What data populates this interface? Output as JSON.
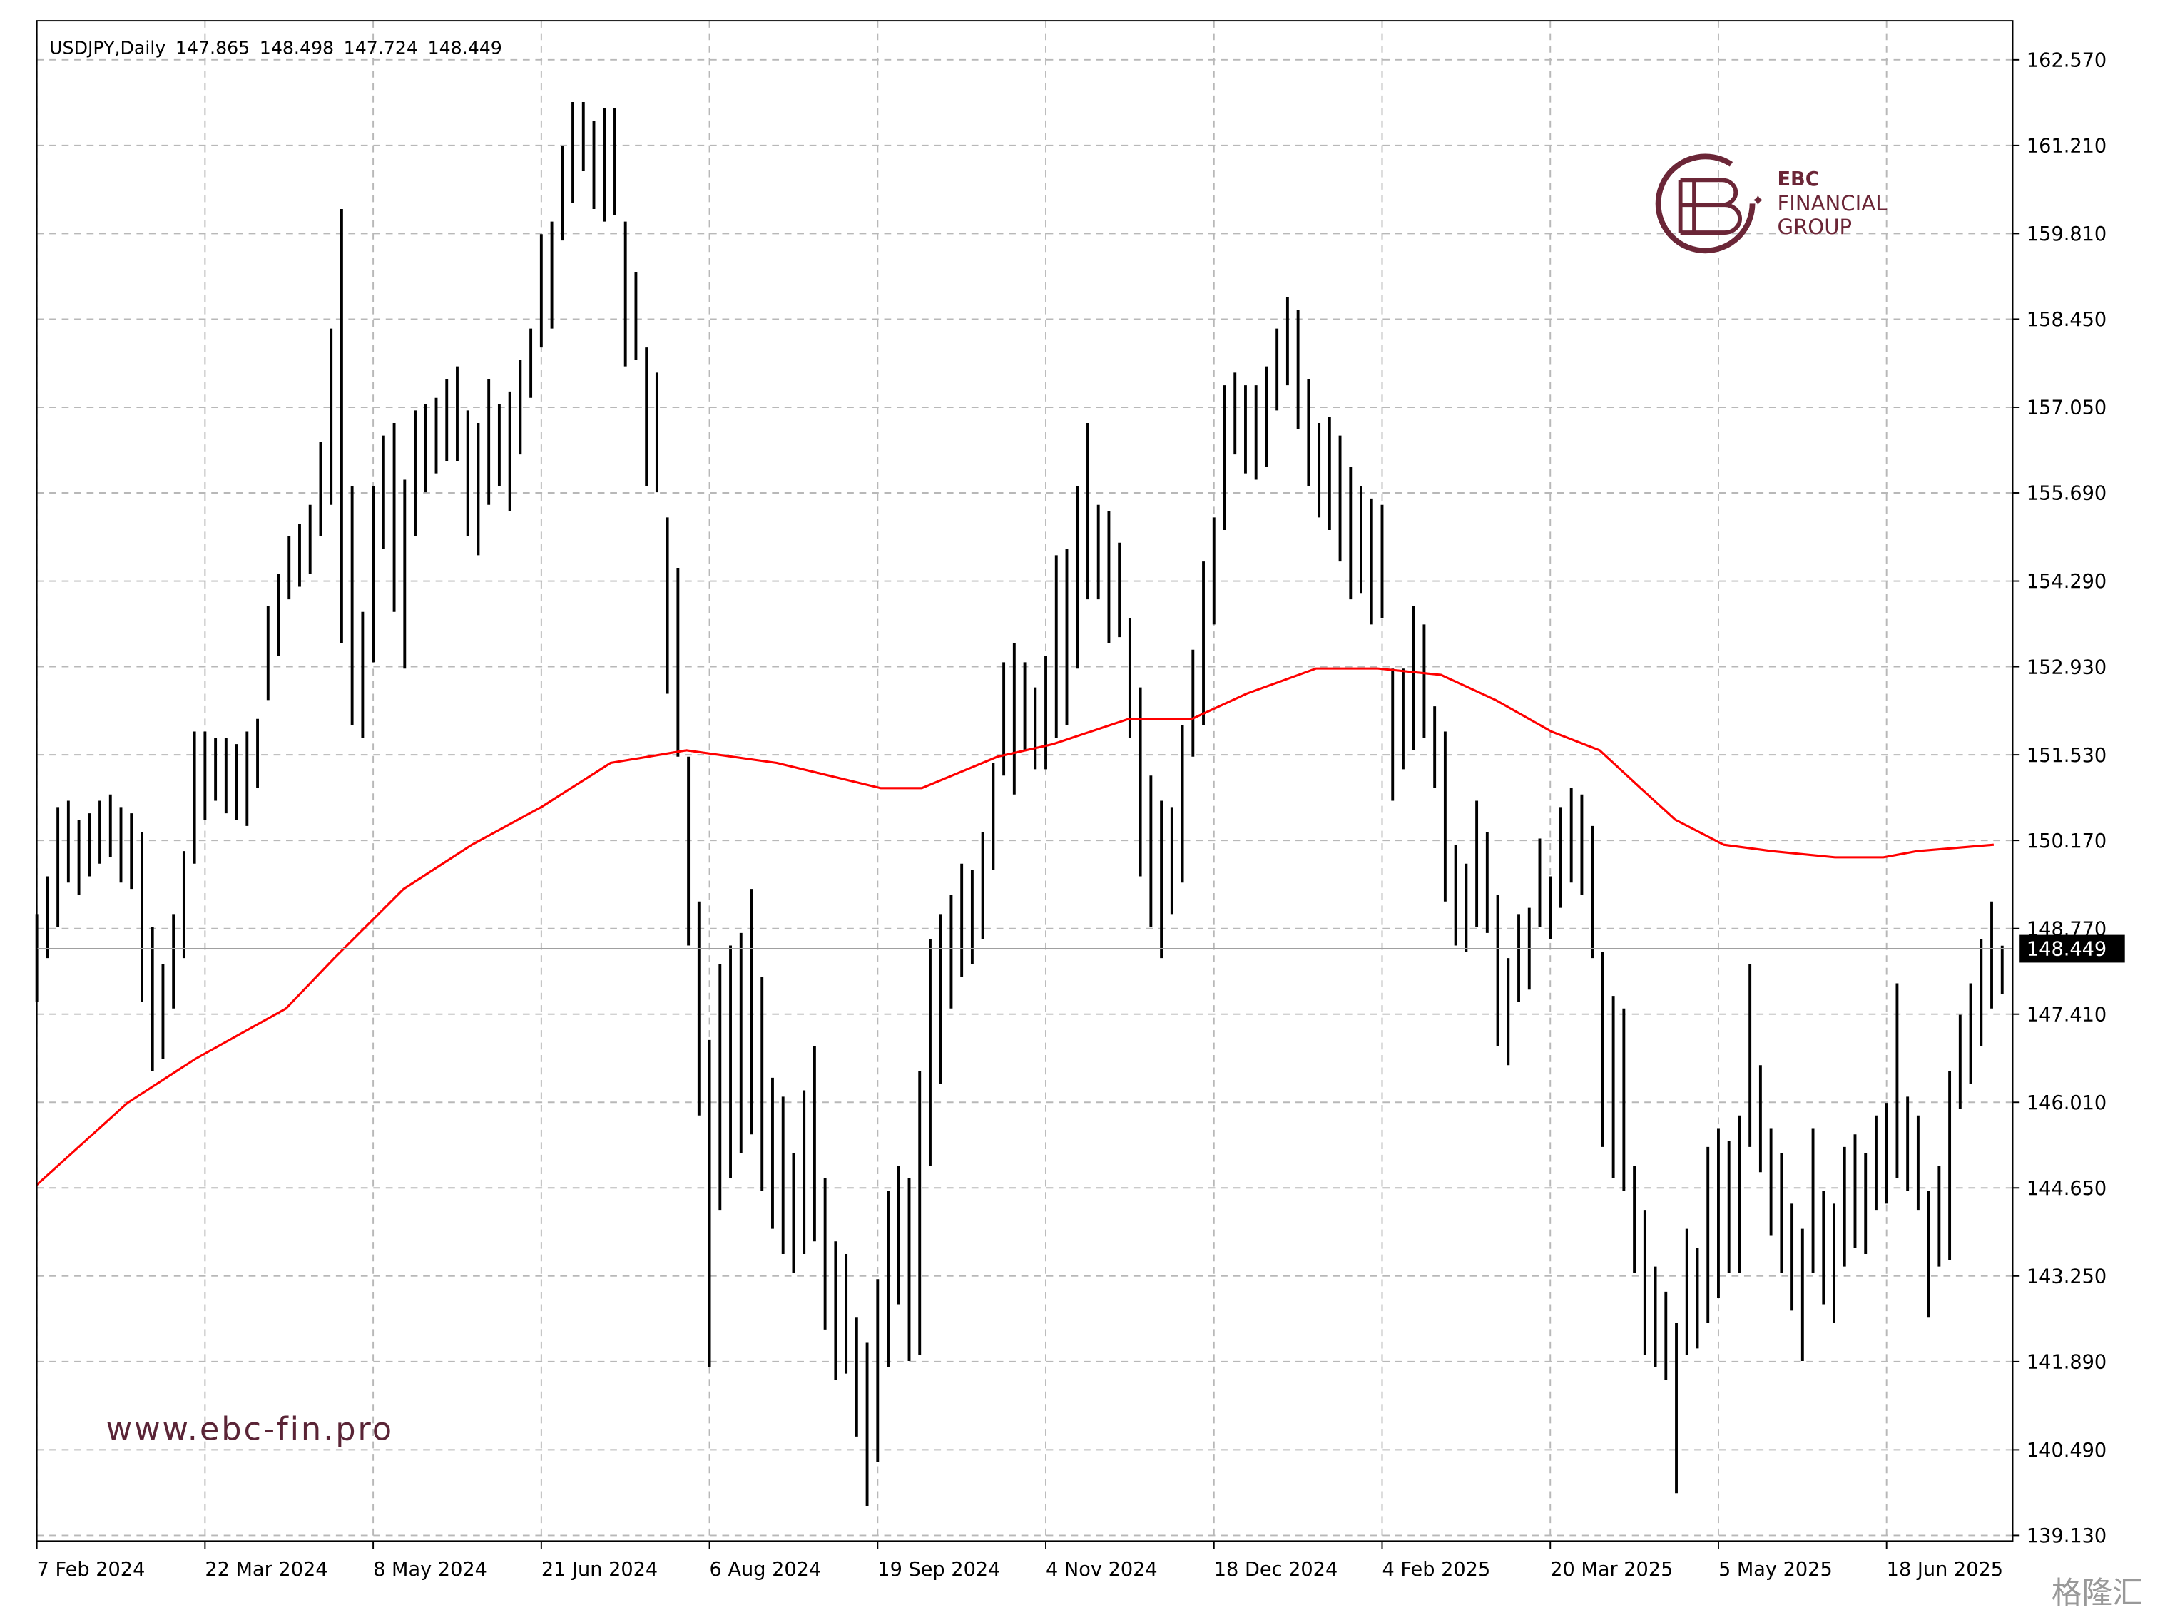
{
  "chart_data": {
    "type": "ohlc",
    "title": "USDJPY,Daily",
    "header_values": [
      147.865,
      148.498,
      147.724,
      148.449
    ],
    "bar_color": "#000000",
    "last_price": 148.449,
    "grid": true,
    "xlim": [
      0,
      188
    ],
    "xticks": [
      {
        "value": 0,
        "label": "7 Feb 2024"
      },
      {
        "value": 16,
        "label": "22 Mar 2024"
      },
      {
        "value": 32,
        "label": "8 May 2024"
      },
      {
        "value": 48,
        "label": "21 Jun 2024"
      },
      {
        "value": 64,
        "label": "6 Aug 2024"
      },
      {
        "value": 80,
        "label": "19 Sep 2024"
      },
      {
        "value": 96,
        "label": "4 Nov 2024"
      },
      {
        "value": 112,
        "label": "18 Dec 2024"
      },
      {
        "value": 128,
        "label": "4 Feb 2025"
      },
      {
        "value": 144,
        "label": "20 Mar 2025"
      },
      {
        "value": 160,
        "label": "5 May 2025"
      },
      {
        "value": 176,
        "label": "18 Jun 2025"
      }
    ],
    "ylim": [
      139.04,
      163.19
    ],
    "yticks": [
      {
        "value": 162.57,
        "label": "162.570"
      },
      {
        "value": 161.21,
        "label": "161.210"
      },
      {
        "value": 159.81,
        "label": "159.810"
      },
      {
        "value": 158.45,
        "label": "158.450"
      },
      {
        "value": 157.05,
        "label": "157.050"
      },
      {
        "value": 155.69,
        "label": "155.690"
      },
      {
        "value": 154.29,
        "label": "154.290"
      },
      {
        "value": 152.93,
        "label": "152.930"
      },
      {
        "value": 151.53,
        "label": "151.530"
      },
      {
        "value": 150.17,
        "label": "150.170"
      },
      {
        "value": 148.77,
        "label": "148.770"
      },
      {
        "value": 147.41,
        "label": "147.410"
      },
      {
        "value": 146.01,
        "label": "146.010"
      },
      {
        "value": 144.65,
        "label": "144.650"
      },
      {
        "value": 143.25,
        "label": "143.250"
      },
      {
        "value": 141.89,
        "label": "141.890"
      },
      {
        "value": 140.49,
        "label": "140.490"
      },
      {
        "value": 139.13,
        "label": "139.130"
      }
    ],
    "low": [
      147.6,
      148.3,
      148.8,
      149.5,
      149.3,
      149.6,
      149.8,
      149.9,
      149.5,
      149.4,
      147.6,
      146.5,
      146.7,
      147.5,
      148.3,
      149.8,
      150.5,
      150.8,
      150.6,
      150.5,
      150.4,
      151.0,
      152.4,
      153.1,
      154.0,
      154.2,
      154.4,
      155.0,
      155.5,
      153.3,
      152.0,
      151.8,
      153.0,
      154.8,
      153.8,
      152.9,
      155.0,
      155.7,
      156.0,
      156.2,
      156.2,
      155.0,
      154.7,
      155.5,
      155.8,
      155.4,
      156.3,
      157.2,
      158.0,
      158.3,
      159.7,
      160.3,
      160.8,
      160.2,
      160.0,
      160.1,
      157.7,
      157.8,
      155.8,
      155.7,
      152.5,
      151.5,
      148.5,
      145.8,
      141.8,
      144.3,
      144.8,
      145.2,
      145.5,
      144.6,
      144.0,
      143.6,
      143.3,
      143.6,
      143.8,
      142.4,
      141.6,
      141.7,
      140.7,
      139.6,
      140.3,
      141.8,
      142.8,
      141.9,
      142.0,
      145.0,
      146.3,
      147.5,
      148.0,
      148.2,
      148.6,
      149.7,
      151.2,
      150.9,
      151.6,
      151.3,
      151.3,
      151.8,
      152.0,
      152.9,
      154.0,
      154.0,
      153.3,
      153.4,
      151.8,
      149.6,
      148.8,
      148.3,
      149.0,
      149.5,
      151.5,
      152.0,
      153.6,
      155.1,
      156.3,
      156.0,
      155.9,
      156.1,
      157.0,
      157.4,
      156.7,
      155.8,
      155.3,
      155.1,
      154.6,
      154.0,
      154.1,
      153.6,
      153.7,
      150.8,
      151.3,
      151.6,
      151.8,
      151.0,
      149.2,
      148.5,
      148.4,
      148.8,
      148.7,
      146.9,
      146.6,
      147.6,
      147.8,
      148.8,
      148.6,
      149.1,
      149.5,
      149.3,
      148.3,
      145.3,
      144.8,
      144.6,
      143.3,
      142.0,
      141.8,
      141.6,
      139.8,
      142.0,
      142.1,
      142.5,
      142.9,
      143.3,
      143.3,
      145.3,
      144.9,
      143.9,
      143.3,
      142.7,
      141.9,
      143.3,
      142.8,
      142.5,
      143.4,
      143.7,
      143.6,
      144.3,
      144.4,
      144.8,
      144.6,
      144.3,
      142.6,
      143.4,
      143.5,
      145.9,
      146.3,
      146.9,
      147.5,
      147.724
    ],
    "high": [
      149.0,
      149.6,
      150.7,
      150.8,
      150.5,
      150.6,
      150.8,
      150.9,
      150.7,
      150.6,
      150.3,
      148.8,
      148.2,
      149.0,
      150.0,
      151.9,
      151.9,
      151.8,
      151.8,
      151.7,
      151.9,
      152.1,
      153.9,
      154.4,
      155.0,
      155.2,
      155.5,
      156.5,
      158.3,
      160.2,
      155.8,
      153.8,
      155.8,
      156.6,
      156.8,
      155.9,
      157.0,
      157.1,
      157.2,
      157.5,
      157.7,
      157.0,
      156.8,
      157.5,
      157.1,
      157.3,
      157.8,
      158.3,
      159.8,
      160.0,
      161.2,
      161.9,
      161.9,
      161.6,
      161.8,
      161.8,
      160.0,
      159.2,
      158.0,
      157.6,
      155.3,
      154.5,
      151.5,
      149.2,
      147.0,
      148.2,
      148.5,
      148.7,
      149.4,
      148.0,
      146.4,
      146.1,
      145.2,
      146.2,
      146.9,
      144.8,
      143.8,
      143.6,
      142.6,
      142.2,
      143.2,
      144.6,
      145.0,
      144.8,
      146.5,
      148.6,
      149.0,
      149.3,
      149.8,
      149.7,
      150.3,
      151.4,
      153.0,
      153.3,
      153.0,
      152.6,
      153.1,
      154.7,
      154.8,
      155.8,
      156.8,
      155.5,
      155.4,
      154.9,
      153.7,
      152.6,
      151.2,
      150.8,
      150.7,
      152.0,
      153.2,
      154.6,
      155.3,
      157.4,
      157.6,
      157.4,
      157.4,
      157.7,
      158.3,
      158.8,
      158.6,
      157.5,
      156.8,
      156.9,
      156.6,
      156.1,
      155.8,
      155.6,
      155.5,
      152.9,
      152.9,
      153.9,
      153.6,
      152.3,
      151.9,
      150.1,
      149.8,
      150.8,
      150.3,
      149.3,
      148.3,
      149.0,
      149.1,
      150.2,
      149.6,
      150.7,
      151.0,
      150.9,
      150.4,
      148.4,
      147.7,
      147.5,
      145.0,
      144.3,
      143.4,
      143.0,
      142.5,
      144.0,
      143.7,
      145.3,
      145.6,
      145.4,
      145.8,
      148.2,
      146.6,
      145.6,
      145.2,
      144.4,
      144.0,
      145.6,
      144.6,
      144.4,
      145.3,
      145.5,
      145.2,
      145.8,
      146.0,
      147.9,
      146.1,
      145.8,
      144.6,
      145.0,
      146.5,
      147.4,
      147.9,
      148.6,
      149.2,
      148.498
    ],
    "ma": {
      "color": "#ff0000",
      "x": [
        0,
        8.6,
        15.1,
        23.7,
        28.3,
        34.9,
        41.4,
        48,
        54.6,
        61.8,
        70.4,
        80.3,
        84.2,
        91.4,
        96.7,
        103.9,
        109.9,
        115.1,
        121.7,
        127.6,
        133.6,
        138.8,
        144.1,
        148.7,
        152.6,
        155.9,
        160.5,
        165.1,
        171.1,
        175.7,
        178.9,
        186.2
      ],
      "values": [
        144.7,
        146.0,
        146.7,
        147.5,
        148.3,
        149.4,
        150.1,
        150.7,
        151.4,
        151.6,
        151.4,
        151.0,
        151.0,
        151.5,
        151.7,
        152.1,
        152.1,
        152.5,
        152.9,
        152.9,
        152.8,
        152.4,
        151.9,
        151.6,
        151.0,
        150.5,
        150.1,
        150.0,
        149.9,
        149.9,
        150.0,
        150.1
      ]
    }
  },
  "branding": {
    "logo_line1": "EBC",
    "logo_line2": "FINANCIAL",
    "logo_line3": "GROUP",
    "website": "www.ebc-fin.pro",
    "watermark": "格隆汇"
  }
}
